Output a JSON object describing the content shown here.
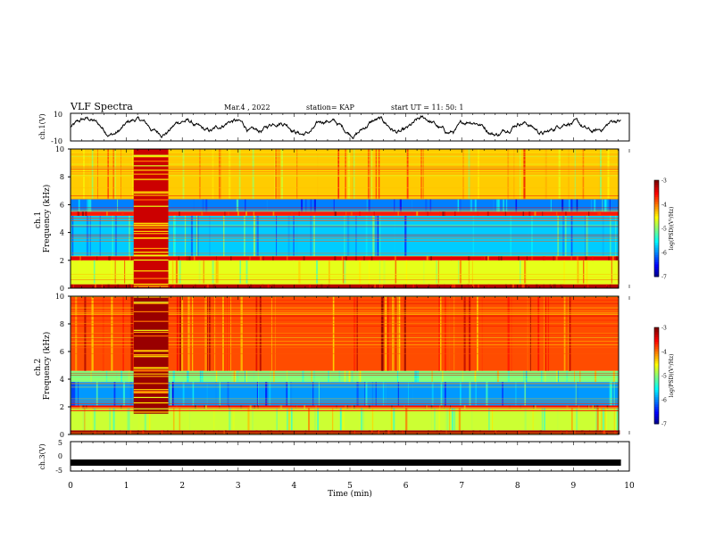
{
  "header": {
    "title": "VLF Spectra",
    "date": "Mar.4 , 2022",
    "station": "station= KAP",
    "start": "start UT = 11: 50: 1"
  },
  "chart_data": [
    {
      "type": "line",
      "panel": "ch1-waveform",
      "ylabel": "ch.1(V)",
      "ylim": [
        -10,
        10
      ],
      "yticks": [
        "10",
        "-10"
      ],
      "xlim": [
        0,
        10
      ],
      "trace": {
        "shape": "noisy oscillation",
        "range_approx": [
          -8,
          6
        ],
        "ends_at_min": 9.85
      }
    },
    {
      "type": "heatmap",
      "panel": "ch1-spectrogram",
      "ylabel": "ch.1 Frequency (kHz)",
      "ylim": [
        0,
        10
      ],
      "yticks": [
        "0",
        "2",
        "4",
        "6",
        "8",
        "10"
      ],
      "xlim": [
        0,
        10
      ],
      "colorbar": {
        "label": "log(PSD)(V²/Hz)",
        "ticks": [
          "-3",
          "-4",
          "-5",
          "-6",
          "-7"
        ],
        "range": [
          -7,
          -3
        ]
      },
      "bands": [
        {
          "from": 0.0,
          "to": 0.3,
          "level": -3.2
        },
        {
          "from": 0.3,
          "to": 2.0,
          "level": -4.6
        },
        {
          "from": 2.0,
          "to": 2.3,
          "level": -3.4
        },
        {
          "from": 2.3,
          "to": 5.2,
          "level": -5.7
        },
        {
          "from": 5.2,
          "to": 5.5,
          "level": -3.6
        },
        {
          "from": 5.5,
          "to": 6.4,
          "level": -6.0
        },
        {
          "from": 6.4,
          "to": 10.0,
          "level": -4.3
        }
      ],
      "bursts": [
        {
          "t_start": 1.13,
          "t_end": 1.75,
          "f_from": 0.0,
          "f_to": 10.0,
          "level": -3.3
        }
      ]
    },
    {
      "type": "heatmap",
      "panel": "ch2-spectrogram",
      "ylabel": "ch.2 Frequency (kHz)",
      "ylim": [
        0,
        10
      ],
      "yticks": [
        "0",
        "2",
        "4",
        "6",
        "8",
        "10"
      ],
      "xlim": [
        0,
        10
      ],
      "colorbar": {
        "label": "log(PSD)(V²/Hz)",
        "ticks": [
          "-3",
          "-4",
          "-5",
          "-6",
          "-7"
        ],
        "range": [
          -7,
          -3
        ]
      },
      "bands": [
        {
          "from": 0.0,
          "to": 0.3,
          "level": -3.1
        },
        {
          "from": 0.3,
          "to": 1.9,
          "level": -4.7
        },
        {
          "from": 1.9,
          "to": 2.1,
          "level": -3.5
        },
        {
          "from": 2.1,
          "to": 3.8,
          "level": -5.9
        },
        {
          "from": 3.8,
          "to": 4.6,
          "level": -5.0
        },
        {
          "from": 4.6,
          "to": 10.0,
          "level": -3.8
        }
      ],
      "bursts": [
        {
          "t_start": 1.13,
          "t_end": 1.75,
          "f_from": 1.5,
          "f_to": 10.0,
          "level": -3.1
        }
      ]
    },
    {
      "type": "line",
      "panel": "ch3-waveform",
      "ylabel": "ch.3(V)",
      "ylim": [
        -5,
        5
      ],
      "yticks": [
        "5",
        "0",
        "-5"
      ],
      "xlim": [
        0,
        10
      ],
      "trace": {
        "shape": "flat thick band",
        "center": -2.2,
        "ends_at_min": 9.85
      }
    }
  ],
  "x_axis": {
    "label": "Time (min)",
    "ticks": [
      "0",
      "1",
      "2",
      "3",
      "4",
      "5",
      "6",
      "7",
      "8",
      "9",
      "10"
    ],
    "range": [
      0,
      10
    ]
  }
}
